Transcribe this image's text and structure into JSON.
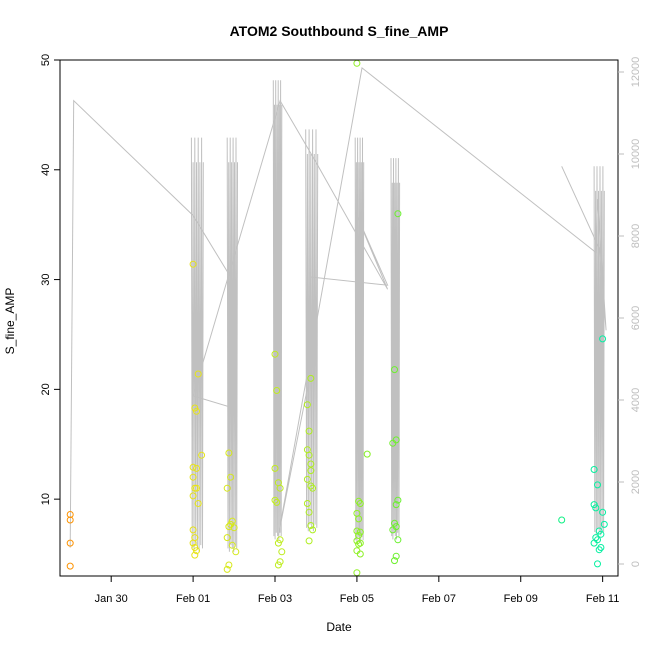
{
  "chart_data": {
    "type": "scatter",
    "title": "ATOM2 Southbound S_fine_AMP",
    "xlabel": "Date",
    "ylabel": "S_fine_AMP",
    "y_ticks": [
      10,
      20,
      30,
      40,
      50
    ],
    "y_tick_labels": [
      "10",
      "20",
      "30",
      "40",
      "50"
    ],
    "ylim": [
      3,
      50
    ],
    "x_range": [
      "2026-01-28T18:00",
      "2026-02-11T09:00"
    ],
    "x_ticks": [
      "2026-01-30",
      "2026-02-01",
      "2026-02-03",
      "2026-02-05",
      "2026-02-07",
      "2026-02-09",
      "2026-02-11"
    ],
    "x_tick_labels": [
      "Jan 30",
      "Feb 01",
      "Feb 03",
      "Feb 05",
      "Feb 07",
      "Feb 09",
      "Feb 11"
    ],
    "y2_ticks": [
      0,
      2000,
      4000,
      6000,
      8000,
      10000,
      12000
    ],
    "y2_tick_labels": [
      "0",
      "2000",
      "4000",
      "6000",
      "8000",
      "10000",
      "12000"
    ],
    "y2lim": [
      0,
      12000
    ],
    "grid": false,
    "colors": {
      "line": "#c0c0c0",
      "right_axis": "#bebebe",
      "point_gradient": [
        "#ff8c00",
        "#e6e619",
        "#a0f020",
        "#20f040",
        "#00f0b0"
      ]
    },
    "series": [
      {
        "marker": "open-circle",
        "axis": "left",
        "points": [
          {
            "x": "2026-01-29T00:00",
            "y": 8.6
          },
          {
            "x": "2026-01-29T00:00",
            "y": 8.1
          },
          {
            "x": "2026-01-29T00:00",
            "y": 6.0
          },
          {
            "x": "2026-01-29T00:00",
            "y": 3.9
          },
          {
            "x": "2026-02-01T00:00",
            "y": 31.4
          },
          {
            "x": "2026-02-01T03:00",
            "y": 21.4
          },
          {
            "x": "2026-02-01T01:00",
            "y": 18.3
          },
          {
            "x": "2026-02-01T02:00",
            "y": 18.0
          },
          {
            "x": "2026-02-01T05:00",
            "y": 14.0
          },
          {
            "x": "2026-02-01T00:00",
            "y": 12.9
          },
          {
            "x": "2026-02-01T02:00",
            "y": 12.8
          },
          {
            "x": "2026-02-01T00:00",
            "y": 12.0
          },
          {
            "x": "2026-02-01T01:00",
            "y": 11.0
          },
          {
            "x": "2026-02-01T02:00",
            "y": 11.0
          },
          {
            "x": "2026-02-01T00:00",
            "y": 10.3
          },
          {
            "x": "2026-02-01T03:00",
            "y": 9.6
          },
          {
            "x": "2026-02-01T00:00",
            "y": 7.2
          },
          {
            "x": "2026-02-01T01:00",
            "y": 6.5
          },
          {
            "x": "2026-02-01T00:00",
            "y": 6.0
          },
          {
            "x": "2026-02-01T01:00",
            "y": 5.6
          },
          {
            "x": "2026-02-01T02:00",
            "y": 5.3
          },
          {
            "x": "2026-02-01T01:00",
            "y": 4.9
          },
          {
            "x": "2026-02-01T21:00",
            "y": 14.2
          },
          {
            "x": "2026-02-01T22:00",
            "y": 12.0
          },
          {
            "x": "2026-02-01T20:00",
            "y": 11.0
          },
          {
            "x": "2026-02-01T23:00",
            "y": 8.0
          },
          {
            "x": "2026-02-01T22:00",
            "y": 7.7
          },
          {
            "x": "2026-02-01T21:00",
            "y": 7.5
          },
          {
            "x": "2026-02-02T00:00",
            "y": 7.4
          },
          {
            "x": "2026-02-01T20:00",
            "y": 6.5
          },
          {
            "x": "2026-02-01T23:00",
            "y": 5.8
          },
          {
            "x": "2026-02-02T01:00",
            "y": 5.2
          },
          {
            "x": "2026-02-01T21:00",
            "y": 4.0
          },
          {
            "x": "2026-02-01T20:00",
            "y": 3.6
          },
          {
            "x": "2026-02-03T00:00",
            "y": 23.2
          },
          {
            "x": "2026-02-03T01:00",
            "y": 19.9
          },
          {
            "x": "2026-02-03T00:00",
            "y": 12.8
          },
          {
            "x": "2026-02-03T02:00",
            "y": 11.5
          },
          {
            "x": "2026-02-03T03:00",
            "y": 11.0
          },
          {
            "x": "2026-02-03T00:00",
            "y": 9.9
          },
          {
            "x": "2026-02-03T01:00",
            "y": 9.7
          },
          {
            "x": "2026-02-03T03:00",
            "y": 6.3
          },
          {
            "x": "2026-02-03T02:00",
            "y": 6.0
          },
          {
            "x": "2026-02-03T04:00",
            "y": 5.2
          },
          {
            "x": "2026-02-03T03:00",
            "y": 4.3
          },
          {
            "x": "2026-02-03T02:00",
            "y": 4.0
          },
          {
            "x": "2026-02-03T21:00",
            "y": 21.0
          },
          {
            "x": "2026-02-03T19:00",
            "y": 18.6
          },
          {
            "x": "2026-02-03T20:00",
            "y": 16.2
          },
          {
            "x": "2026-02-03T19:00",
            "y": 14.5
          },
          {
            "x": "2026-02-03T20:00",
            "y": 14.0
          },
          {
            "x": "2026-02-03T21:00",
            "y": 13.2
          },
          {
            "x": "2026-02-03T21:00",
            "y": 12.6
          },
          {
            "x": "2026-02-03T19:00",
            "y": 11.8
          },
          {
            "x": "2026-02-03T21:00",
            "y": 11.2
          },
          {
            "x": "2026-02-03T22:00",
            "y": 11.0
          },
          {
            "x": "2026-02-03T19:00",
            "y": 9.6
          },
          {
            "x": "2026-02-03T20:00",
            "y": 8.8
          },
          {
            "x": "2026-02-03T21:00",
            "y": 7.6
          },
          {
            "x": "2026-02-03T22:00",
            "y": 7.2
          },
          {
            "x": "2026-02-03T20:00",
            "y": 6.2
          },
          {
            "x": "2026-02-05T00:00",
            "y": 49.7
          },
          {
            "x": "2026-02-05T06:00",
            "y": 14.1
          },
          {
            "x": "2026-02-05T01:00",
            "y": 9.8
          },
          {
            "x": "2026-02-05T02:00",
            "y": 9.6
          },
          {
            "x": "2026-02-05T00:00",
            "y": 8.7
          },
          {
            "x": "2026-02-05T01:00",
            "y": 8.2
          },
          {
            "x": "2026-02-05T00:00",
            "y": 7.1
          },
          {
            "x": "2026-02-05T02:00",
            "y": 7.0
          },
          {
            "x": "2026-02-05T01:00",
            "y": 6.7
          },
          {
            "x": "2026-02-05T00:00",
            "y": 6.2
          },
          {
            "x": "2026-02-05T02:00",
            "y": 6.0
          },
          {
            "x": "2026-02-05T01:00",
            "y": 5.9
          },
          {
            "x": "2026-02-05T00:00",
            "y": 5.3
          },
          {
            "x": "2026-02-05T02:00",
            "y": 5.0
          },
          {
            "x": "2026-02-05T00:00",
            "y": 3.3
          },
          {
            "x": "2026-02-06T00:00",
            "y": 36.0
          },
          {
            "x": "2026-02-05T22:00",
            "y": 21.8
          },
          {
            "x": "2026-02-05T23:00",
            "y": 15.4
          },
          {
            "x": "2026-02-05T21:00",
            "y": 15.1
          },
          {
            "x": "2026-02-06T00:00",
            "y": 9.9
          },
          {
            "x": "2026-02-05T23:00",
            "y": 9.5
          },
          {
            "x": "2026-02-05T22:00",
            "y": 7.8
          },
          {
            "x": "2026-02-05T23:00",
            "y": 7.5
          },
          {
            "x": "2026-02-05T21:00",
            "y": 7.2
          },
          {
            "x": "2026-02-06T00:00",
            "y": 6.3
          },
          {
            "x": "2026-02-05T23:00",
            "y": 4.8
          },
          {
            "x": "2026-02-05T22:00",
            "y": 4.4
          },
          {
            "x": "2026-02-10T00:00",
            "y": 8.1
          },
          {
            "x": "2026-02-11T00:00",
            "y": 24.6
          },
          {
            "x": "2026-02-10T19:00",
            "y": 12.7
          },
          {
            "x": "2026-02-10T21:00",
            "y": 11.3
          },
          {
            "x": "2026-02-10T19:00",
            "y": 9.5
          },
          {
            "x": "2026-02-10T20:00",
            "y": 9.2
          },
          {
            "x": "2026-02-11T00:00",
            "y": 8.8
          },
          {
            "x": "2026-02-11T01:00",
            "y": 7.7
          },
          {
            "x": "2026-02-10T22:00",
            "y": 7.1
          },
          {
            "x": "2026-02-10T23:00",
            "y": 6.8
          },
          {
            "x": "2026-02-10T20:00",
            "y": 6.5
          },
          {
            "x": "2026-02-10T21:00",
            "y": 6.3
          },
          {
            "x": "2026-02-10T19:00",
            "y": 6.0
          },
          {
            "x": "2026-02-10T23:00",
            "y": 5.6
          },
          {
            "x": "2026-02-10T22:00",
            "y": 5.4
          },
          {
            "x": "2026-02-10T21:00",
            "y": 4.1
          }
        ]
      },
      {
        "marker": "line",
        "axis": "right",
        "points": [
          {
            "x": "2026-01-29T00:00",
            "y": 400
          },
          {
            "x": "2026-01-29T02:00",
            "y": 11300
          },
          {
            "x": "2026-02-01T00:00",
            "y": 8500
          },
          {
            "x": "2026-02-01T22:00",
            "y": 7000
          },
          {
            "x": "2026-02-01T23:00",
            "y": 6400
          },
          {
            "x": "2026-02-02T00:00",
            "y": 3800
          },
          {
            "x": "2026-02-01T00:00",
            "y": 4100
          },
          {
            "x": "2026-02-03T03:00",
            "y": 11300
          },
          {
            "x": "2026-02-04T00:00",
            "y": 9800
          },
          {
            "x": "2026-02-05T18:00",
            "y": 6700
          },
          {
            "x": "2026-02-05T00:00",
            "y": 8500
          },
          {
            "x": "2026-02-05T18:00",
            "y": 6800
          },
          {
            "x": "2026-02-03T21:00",
            "y": 7000
          },
          {
            "x": "2026-02-03T20:00",
            "y": 4500
          },
          {
            "x": "2026-02-03T02:00",
            "y": 700
          },
          {
            "x": "2026-02-05T03:00",
            "y": 12100
          },
          {
            "x": "2026-02-10T20:00",
            "y": 7600
          },
          {
            "x": "2026-02-10T21:00",
            "y": 8900
          },
          {
            "x": "2026-02-11T02:00",
            "y": 5700
          },
          {
            "x": "2026-02-10T22:00",
            "y": 7700
          },
          {
            "x": "2026-02-10T00:00",
            "y": 9700
          }
        ],
        "dense_bursts": [
          {
            "start": "2026-01-31T23:00",
            "end": "2026-02-01T06:00",
            "low": 300,
            "high": 10400
          },
          {
            "start": "2026-02-01T20:00",
            "end": "2026-02-02T02:00",
            "low": 300,
            "high": 10400
          },
          {
            "start": "2026-02-02T23:00",
            "end": "2026-02-03T04:00",
            "low": 600,
            "high": 11800
          },
          {
            "start": "2026-02-03T18:00",
            "end": "2026-02-04T01:00",
            "low": 800,
            "high": 10600
          },
          {
            "start": "2026-02-04T23:00",
            "end": "2026-02-05T04:00",
            "low": 500,
            "high": 10400
          },
          {
            "start": "2026-02-05T20:00",
            "end": "2026-02-06T01:00",
            "low": 600,
            "high": 9900
          },
          {
            "start": "2026-02-10T19:00",
            "end": "2026-02-11T01:00",
            "low": 700,
            "high": 9700
          }
        ]
      }
    ]
  }
}
